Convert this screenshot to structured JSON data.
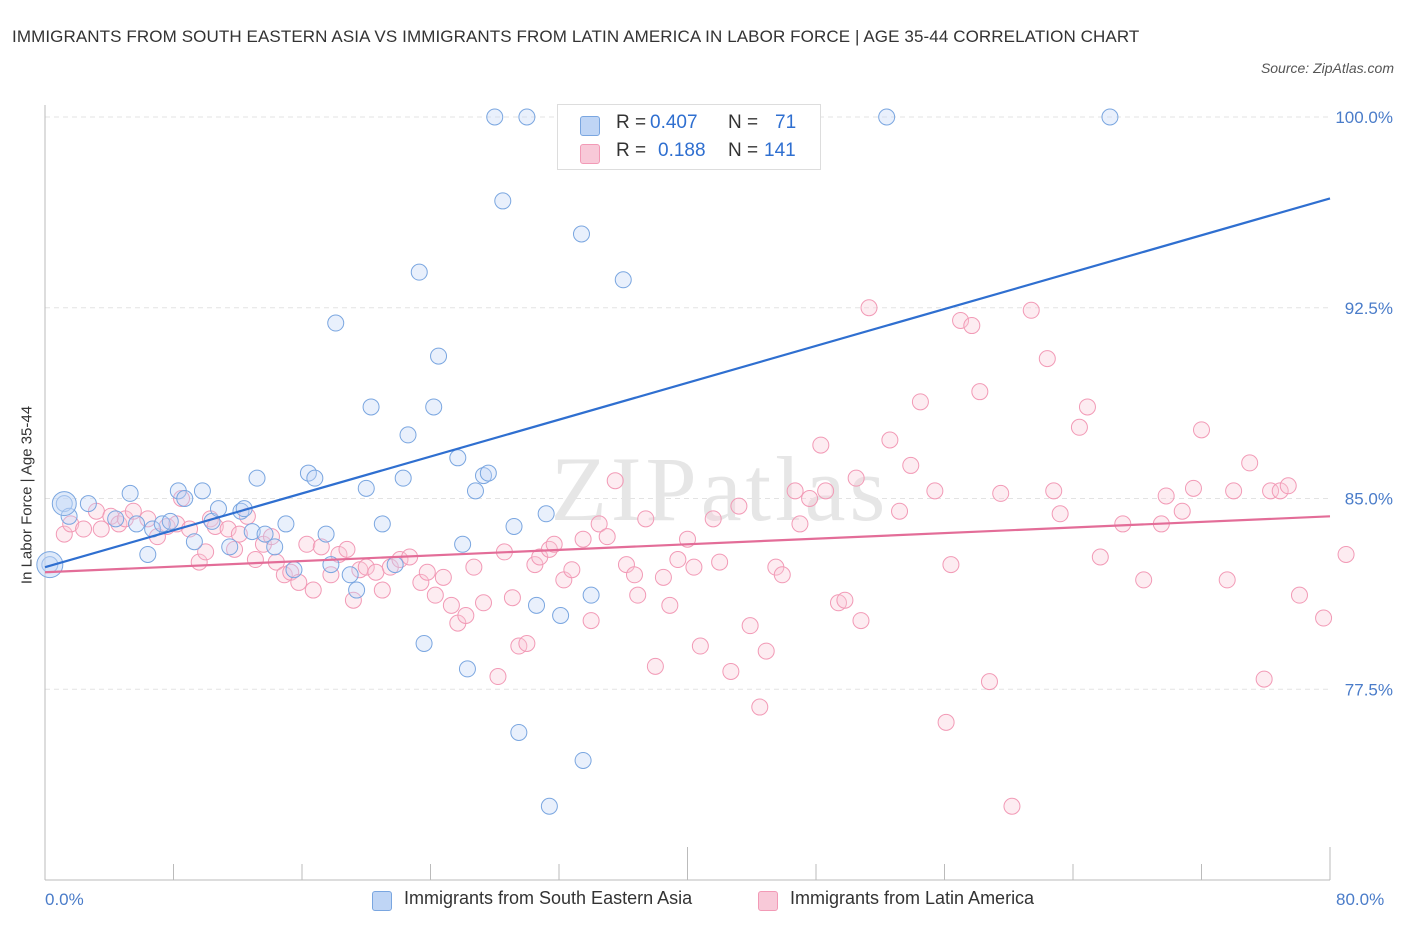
{
  "chart_data": {
    "type": "scatter",
    "title": "IMMIGRANTS FROM SOUTH EASTERN ASIA VS IMMIGRANTS FROM LATIN AMERICA IN LABOR FORCE | AGE 35-44 CORRELATION CHART",
    "source": "Source: ZipAtlas.com",
    "ylabel": "In Labor Force | Age 35-44",
    "xlim": [
      0,
      80
    ],
    "ylim": [
      70,
      100
    ],
    "x_tick_labels": [
      "0.0%",
      "80.0%"
    ],
    "y_ticks": [
      77.5,
      85.0,
      92.5,
      100.0
    ],
    "y_tick_labels": [
      "77.5%",
      "85.0%",
      "92.5%",
      "100.0%"
    ],
    "watermark": "ZIPatlas",
    "series": [
      {
        "name": "Immigrants from South Eastern Asia",
        "color": "#7aa6e0",
        "line_color": "#2f6fd0",
        "R": "0.407",
        "N": "71",
        "trend": [
          [
            0,
            82.3
          ],
          [
            80,
            96.8
          ]
        ],
        "points": [
          [
            0.3,
            82.4
          ],
          [
            1.2,
            84.8
          ],
          [
            1.5,
            84.3
          ],
          [
            2.7,
            84.8
          ],
          [
            4.4,
            84.2
          ],
          [
            5.3,
            85.2
          ],
          [
            5.7,
            84.0
          ],
          [
            6.4,
            82.8
          ],
          [
            6.7,
            83.8
          ],
          [
            7.3,
            84.0
          ],
          [
            7.8,
            84.1
          ],
          [
            8.3,
            85.3
          ],
          [
            8.7,
            85.0
          ],
          [
            9.3,
            83.3
          ],
          [
            9.8,
            85.3
          ],
          [
            10.4,
            84.1
          ],
          [
            10.8,
            84.6
          ],
          [
            11.5,
            83.1
          ],
          [
            12.2,
            84.5
          ],
          [
            12.4,
            84.6
          ],
          [
            12.9,
            83.7
          ],
          [
            13.2,
            85.8
          ],
          [
            13.7,
            83.6
          ],
          [
            14.3,
            83.1
          ],
          [
            15.0,
            84.0
          ],
          [
            15.5,
            82.2
          ],
          [
            16.4,
            86.0
          ],
          [
            16.8,
            85.8
          ],
          [
            17.5,
            83.6
          ],
          [
            17.8,
            82.4
          ],
          [
            18.1,
            91.9
          ],
          [
            19.0,
            82.0
          ],
          [
            19.4,
            81.4
          ],
          [
            20.0,
            85.4
          ],
          [
            20.3,
            88.6
          ],
          [
            21.0,
            84.0
          ],
          [
            21.8,
            82.4
          ],
          [
            22.3,
            85.8
          ],
          [
            22.6,
            87.5
          ],
          [
            23.3,
            93.9
          ],
          [
            23.6,
            79.3
          ],
          [
            24.2,
            88.6
          ],
          [
            24.5,
            90.6
          ],
          [
            25.7,
            86.6
          ],
          [
            26.0,
            83.2
          ],
          [
            26.3,
            78.3
          ],
          [
            26.8,
            85.3
          ],
          [
            27.3,
            85.9
          ],
          [
            27.6,
            86.0
          ],
          [
            28.0,
            100.0
          ],
          [
            28.5,
            96.7
          ],
          [
            29.2,
            83.9
          ],
          [
            29.5,
            75.8
          ],
          [
            30.0,
            100.0
          ],
          [
            30.6,
            80.8
          ],
          [
            31.2,
            84.4
          ],
          [
            31.4,
            72.9
          ],
          [
            32.1,
            80.4
          ],
          [
            33.4,
            95.4
          ],
          [
            33.5,
            74.7
          ],
          [
            34.0,
            81.2
          ],
          [
            36.0,
            93.6
          ],
          [
            52.4,
            100.0
          ],
          [
            66.3,
            100.0
          ]
        ]
      },
      {
        "name": "Immigrants from Latin America",
        "color": "#f29ab6",
        "line_color": "#e36d98",
        "R": "0.188",
        "N": "141",
        "trend": [
          [
            0,
            82.1
          ],
          [
            80,
            84.3
          ]
        ],
        "points": [
          [
            1.2,
            83.6
          ],
          [
            1.6,
            84.0
          ],
          [
            2.4,
            83.8
          ],
          [
            3.2,
            84.5
          ],
          [
            3.5,
            83.8
          ],
          [
            4.1,
            84.3
          ],
          [
            4.6,
            84.0
          ],
          [
            5.0,
            84.2
          ],
          [
            5.5,
            84.5
          ],
          [
            6.4,
            84.2
          ],
          [
            7.0,
            83.5
          ],
          [
            7.6,
            83.9
          ],
          [
            8.2,
            84.0
          ],
          [
            8.5,
            85.0
          ],
          [
            9.0,
            83.8
          ],
          [
            9.6,
            82.5
          ],
          [
            10.0,
            82.9
          ],
          [
            10.3,
            84.2
          ],
          [
            10.6,
            83.9
          ],
          [
            11.4,
            83.8
          ],
          [
            11.8,
            83.0
          ],
          [
            12.1,
            83.6
          ],
          [
            12.6,
            84.3
          ],
          [
            13.1,
            82.6
          ],
          [
            13.6,
            83.2
          ],
          [
            14.1,
            83.5
          ],
          [
            14.4,
            82.5
          ],
          [
            14.9,
            82.0
          ],
          [
            15.3,
            82.1
          ],
          [
            15.8,
            81.7
          ],
          [
            16.3,
            83.2
          ],
          [
            16.7,
            81.4
          ],
          [
            17.2,
            83.1
          ],
          [
            17.8,
            82.0
          ],
          [
            18.3,
            82.8
          ],
          [
            18.8,
            83.0
          ],
          [
            19.2,
            81.0
          ],
          [
            19.6,
            82.2
          ],
          [
            20.0,
            82.3
          ],
          [
            20.6,
            82.1
          ],
          [
            21.0,
            81.4
          ],
          [
            21.5,
            82.3
          ],
          [
            22.1,
            82.6
          ],
          [
            22.7,
            82.7
          ],
          [
            23.4,
            81.7
          ],
          [
            23.8,
            82.1
          ],
          [
            24.3,
            81.2
          ],
          [
            24.8,
            81.9
          ],
          [
            25.3,
            80.8
          ],
          [
            25.7,
            80.1
          ],
          [
            26.2,
            80.4
          ],
          [
            26.7,
            82.3
          ],
          [
            27.3,
            80.9
          ],
          [
            28.2,
            78.0
          ],
          [
            28.6,
            82.9
          ],
          [
            29.1,
            81.1
          ],
          [
            29.5,
            79.2
          ],
          [
            30.0,
            79.3
          ],
          [
            30.5,
            82.4
          ],
          [
            30.8,
            82.7
          ],
          [
            31.4,
            83.0
          ],
          [
            31.7,
            83.2
          ],
          [
            32.3,
            81.8
          ],
          [
            32.8,
            82.2
          ],
          [
            33.5,
            83.4
          ],
          [
            34.0,
            80.2
          ],
          [
            34.5,
            84.0
          ],
          [
            35.0,
            83.5
          ],
          [
            35.5,
            85.7
          ],
          [
            36.2,
            82.4
          ],
          [
            36.7,
            82.0
          ],
          [
            36.9,
            81.2
          ],
          [
            37.4,
            84.2
          ],
          [
            38.0,
            78.4
          ],
          [
            38.5,
            81.9
          ],
          [
            38.9,
            80.8
          ],
          [
            39.4,
            82.6
          ],
          [
            40.0,
            83.4
          ],
          [
            40.4,
            82.3
          ],
          [
            40.8,
            79.2
          ],
          [
            41.6,
            84.2
          ],
          [
            42.0,
            82.5
          ],
          [
            42.7,
            78.2
          ],
          [
            43.2,
            84.7
          ],
          [
            43.9,
            80.0
          ],
          [
            44.5,
            76.8
          ],
          [
            44.9,
            79.0
          ],
          [
            45.5,
            82.3
          ],
          [
            45.9,
            82.0
          ],
          [
            46.7,
            85.3
          ],
          [
            47.0,
            84.0
          ],
          [
            47.6,
            85.0
          ],
          [
            48.3,
            87.1
          ],
          [
            48.6,
            85.3
          ],
          [
            49.4,
            80.9
          ],
          [
            49.8,
            81.0
          ],
          [
            50.5,
            85.8
          ],
          [
            50.8,
            80.2
          ],
          [
            51.3,
            92.5
          ],
          [
            52.6,
            87.3
          ],
          [
            53.2,
            84.5
          ],
          [
            53.9,
            86.3
          ],
          [
            54.5,
            88.8
          ],
          [
            55.4,
            85.3
          ],
          [
            56.1,
            76.2
          ],
          [
            56.4,
            82.4
          ],
          [
            57.0,
            92.0
          ],
          [
            57.7,
            91.8
          ],
          [
            58.2,
            89.2
          ],
          [
            58.8,
            77.8
          ],
          [
            59.5,
            85.2
          ],
          [
            60.2,
            72.9
          ],
          [
            61.4,
            92.4
          ],
          [
            62.4,
            90.5
          ],
          [
            62.8,
            85.3
          ],
          [
            63.2,
            84.4
          ],
          [
            64.4,
            87.8
          ],
          [
            64.9,
            88.6
          ],
          [
            65.7,
            82.7
          ],
          [
            67.1,
            84.0
          ],
          [
            68.4,
            81.8
          ],
          [
            69.5,
            84.0
          ],
          [
            69.8,
            85.1
          ],
          [
            70.8,
            84.5
          ],
          [
            71.5,
            85.4
          ],
          [
            72.0,
            87.7
          ],
          [
            73.6,
            81.8
          ],
          [
            74.0,
            85.3
          ],
          [
            75.0,
            86.4
          ],
          [
            75.9,
            77.9
          ],
          [
            76.3,
            85.3
          ],
          [
            76.9,
            85.3
          ],
          [
            77.4,
            85.5
          ],
          [
            78.1,
            81.2
          ],
          [
            79.6,
            80.3
          ],
          [
            81.0,
            82.8
          ]
        ]
      }
    ]
  },
  "legend_top": {
    "rows": [
      {
        "r_label": "R =",
        "r_value": "0.407",
        "n_label": "N =",
        "n_value": "71"
      },
      {
        "r_label": "R =",
        "r_value": "0.188",
        "n_label": "N =",
        "n_value": "141"
      }
    ]
  }
}
